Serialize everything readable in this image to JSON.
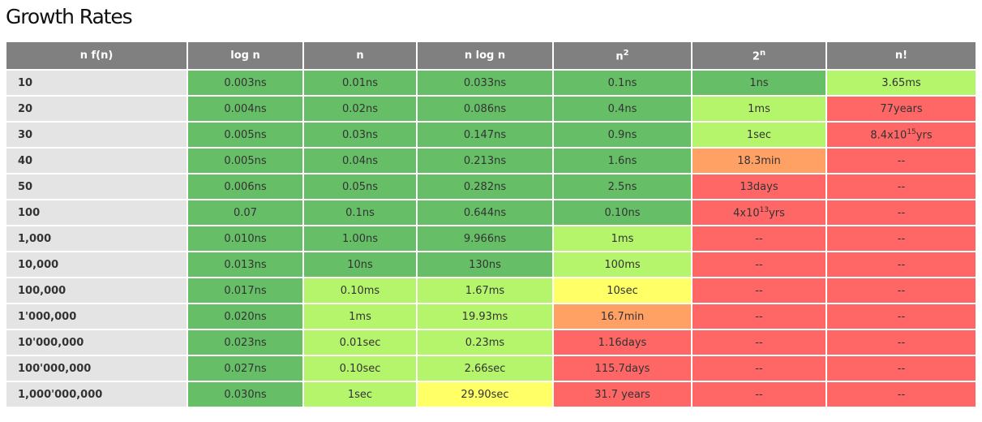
{
  "title": "Growth Rates",
  "columns": [
    {
      "label": "n f(n)"
    },
    {
      "label": "log n"
    },
    {
      "label": "n"
    },
    {
      "label": "n log n"
    },
    {
      "label": "n",
      "sup": "2"
    },
    {
      "label": "2",
      "sup": "n"
    },
    {
      "label": "n!"
    }
  ],
  "colors": {
    "g": "#66bf66",
    "l": "#b5f56c",
    "y": "#ffff66",
    "o": "#ffa064",
    "r": "#ff6666",
    "header": "#808080",
    "row_header": "#e4e4e4"
  },
  "rows": [
    {
      "n": "10",
      "cells": [
        {
          "v": "0.003ns",
          "c": "g"
        },
        {
          "v": "0.01ns",
          "c": "g"
        },
        {
          "v": "0.033ns",
          "c": "g"
        },
        {
          "v": "0.1ns",
          "c": "g"
        },
        {
          "v": "1ns",
          "c": "g"
        },
        {
          "v": "3.65ms",
          "c": "l"
        }
      ]
    },
    {
      "n": "20",
      "cells": [
        {
          "v": "0.004ns",
          "c": "g"
        },
        {
          "v": "0.02ns",
          "c": "g"
        },
        {
          "v": "0.086ns",
          "c": "g"
        },
        {
          "v": "0.4ns",
          "c": "g"
        },
        {
          "v": "1ms",
          "c": "l"
        },
        {
          "v": "77years",
          "c": "r"
        }
      ]
    },
    {
      "n": "30",
      "cells": [
        {
          "v": "0.005ns",
          "c": "g"
        },
        {
          "v": "0.03ns",
          "c": "g"
        },
        {
          "v": "0.147ns",
          "c": "g"
        },
        {
          "v": "0.9ns",
          "c": "g"
        },
        {
          "v": "1sec",
          "c": "l"
        },
        {
          "v": "8.4x10",
          "sup": "15",
          "post": "yrs",
          "c": "r"
        }
      ]
    },
    {
      "n": "40",
      "cells": [
        {
          "v": "0.005ns",
          "c": "g"
        },
        {
          "v": "0.04ns",
          "c": "g"
        },
        {
          "v": "0.213ns",
          "c": "g"
        },
        {
          "v": "1.6ns",
          "c": "g"
        },
        {
          "v": "18.3min",
          "c": "o"
        },
        {
          "v": "--",
          "c": "r"
        }
      ]
    },
    {
      "n": "50",
      "cells": [
        {
          "v": "0.006ns",
          "c": "g"
        },
        {
          "v": "0.05ns",
          "c": "g"
        },
        {
          "v": "0.282ns",
          "c": "g"
        },
        {
          "v": "2.5ns",
          "c": "g"
        },
        {
          "v": "13days",
          "c": "r"
        },
        {
          "v": "--",
          "c": "r"
        }
      ]
    },
    {
      "n": "100",
      "cells": [
        {
          "v": "0.07",
          "c": "g"
        },
        {
          "v": "0.1ns",
          "c": "g"
        },
        {
          "v": "0.644ns",
          "c": "g"
        },
        {
          "v": "0.10ns",
          "c": "g"
        },
        {
          "v": "4x10",
          "sup": "13",
          "post": "yrs",
          "c": "r"
        },
        {
          "v": "--",
          "c": "r"
        }
      ]
    },
    {
      "n": "1,000",
      "cells": [
        {
          "v": "0.010ns",
          "c": "g"
        },
        {
          "v": "1.00ns",
          "c": "g"
        },
        {
          "v": "9.966ns",
          "c": "g"
        },
        {
          "v": "1ms",
          "c": "l"
        },
        {
          "v": "--",
          "c": "r"
        },
        {
          "v": "--",
          "c": "r"
        }
      ]
    },
    {
      "n": "10,000",
      "cells": [
        {
          "v": "0.013ns",
          "c": "g"
        },
        {
          "v": "10ns",
          "c": "g"
        },
        {
          "v": "130ns",
          "c": "g"
        },
        {
          "v": "100ms",
          "c": "l"
        },
        {
          "v": "--",
          "c": "r"
        },
        {
          "v": "--",
          "c": "r"
        }
      ]
    },
    {
      "n": "100,000",
      "cells": [
        {
          "v": "0.017ns",
          "c": "g"
        },
        {
          "v": "0.10ms",
          "c": "l"
        },
        {
          "v": "1.67ms",
          "c": "l"
        },
        {
          "v": "10sec",
          "c": "y"
        },
        {
          "v": "--",
          "c": "r"
        },
        {
          "v": "--",
          "c": "r"
        }
      ]
    },
    {
      "n": "1'000,000",
      "cells": [
        {
          "v": "0.020ns",
          "c": "g"
        },
        {
          "v": "1ms",
          "c": "l"
        },
        {
          "v": "19.93ms",
          "c": "l"
        },
        {
          "v": "16.7min",
          "c": "o"
        },
        {
          "v": "--",
          "c": "r"
        },
        {
          "v": "--",
          "c": "r"
        }
      ]
    },
    {
      "n": "10'000,000",
      "cells": [
        {
          "v": "0.023ns",
          "c": "g"
        },
        {
          "v": "0.01sec",
          "c": "l"
        },
        {
          "v": "0.23ms",
          "c": "l"
        },
        {
          "v": "1.16days",
          "c": "r"
        },
        {
          "v": "--",
          "c": "r"
        },
        {
          "v": "--",
          "c": "r"
        }
      ]
    },
    {
      "n": "100'000,000",
      "cells": [
        {
          "v": "0.027ns",
          "c": "g"
        },
        {
          "v": "0.10sec",
          "c": "l"
        },
        {
          "v": "2.66sec",
          "c": "l"
        },
        {
          "v": "115.7days",
          "c": "r"
        },
        {
          "v": "--",
          "c": "r"
        },
        {
          "v": "--",
          "c": "r"
        }
      ]
    },
    {
      "n": "1,000'000,000",
      "cells": [
        {
          "v": "0.030ns",
          "c": "g"
        },
        {
          "v": "1sec",
          "c": "l"
        },
        {
          "v": "29.90sec",
          "c": "y"
        },
        {
          "v": "31.7 years",
          "c": "r"
        },
        {
          "v": "--",
          "c": "r"
        },
        {
          "v": "--",
          "c": "r"
        }
      ]
    }
  ]
}
